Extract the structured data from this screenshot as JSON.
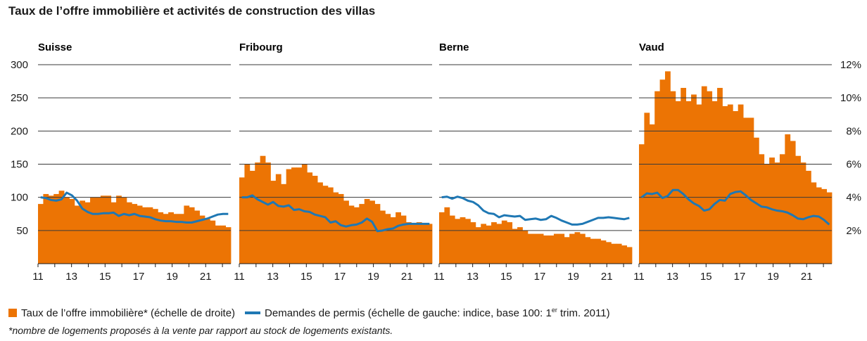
{
  "title": "Taux de l’offre immobilière et activités de construction des villas",
  "legend": {
    "bar_label": "Taux de l’offre immobilière* (échelle de droite)",
    "line_label_pre": "Demandes de permis (échelle de gauche: indice, base 100: 1",
    "line_label_sup": "er",
    "line_label_post": " trim. 2011)"
  },
  "footnote": "*nombre de logements proposés à la vente par rapport au stock de logements existants.",
  "colors": {
    "bar": "#ec7404",
    "line": "#1f78b4",
    "grid": "#3a3a3a"
  },
  "chart_data": [
    {
      "type": "bar+line",
      "title": "Suisse",
      "x_start": 2011.0,
      "x_step": 0.25,
      "x_ticks": [
        "11",
        "13",
        "15",
        "17",
        "19",
        "21"
      ],
      "y_left": {
        "range": [
          0,
          300
        ],
        "ticks": [
          50,
          100,
          150,
          200,
          250,
          300
        ],
        "tick_labels": [
          "50",
          "100",
          "150",
          "200",
          "250",
          "300"
        ]
      },
      "y_right": {
        "range": [
          0,
          12
        ],
        "ticks": [
          2,
          4,
          6,
          8,
          10,
          12
        ],
        "tick_labels": [
          "2%",
          "4%",
          "6%",
          "8%",
          "10%",
          "12%"
        ]
      },
      "bar_values": [
        3.6,
        4.2,
        4.1,
        4.2,
        4.4,
        4.0,
        3.9,
        3.5,
        3.8,
        3.7,
        4.0,
        4.0,
        4.1,
        4.1,
        3.7,
        4.1,
        4.0,
        3.7,
        3.6,
        3.5,
        3.4,
        3.4,
        3.3,
        3.1,
        3.0,
        3.1,
        3.0,
        3.0,
        3.5,
        3.4,
        3.2,
        2.9,
        2.7,
        2.6,
        2.3,
        2.3,
        2.2
      ],
      "line_values": [
        100,
        99,
        96,
        95,
        97,
        107,
        103,
        95,
        83,
        78,
        75,
        75,
        76,
        76,
        77,
        72,
        75,
        73,
        75,
        72,
        71,
        70,
        67,
        65,
        64,
        64,
        63,
        63,
        62,
        62,
        64,
        66,
        68,
        71,
        74,
        75,
        75
      ]
    },
    {
      "type": "bar+line",
      "title": "Fribourg",
      "x_start": 2011.0,
      "x_step": 0.25,
      "x_ticks": [
        "11",
        "13",
        "15",
        "17",
        "19",
        "21"
      ],
      "y_left": {
        "range": [
          0,
          300
        ],
        "ticks": [
          50,
          100,
          150,
          200,
          250,
          300
        ]
      },
      "y_right": {
        "range": [
          0,
          12
        ],
        "ticks": [
          2,
          4,
          6,
          8,
          10,
          12
        ]
      },
      "bar_values": [
        5.2,
        6.0,
        5.6,
        6.1,
        6.5,
        6.1,
        5.0,
        5.4,
        4.8,
        5.7,
        5.8,
        5.8,
        6.0,
        5.5,
        5.3,
        4.9,
        4.7,
        4.6,
        4.3,
        4.2,
        3.8,
        3.5,
        3.4,
        3.6,
        3.9,
        3.8,
        3.6,
        3.2,
        3.0,
        2.8,
        3.1,
        2.9,
        2.5,
        2.4,
        2.5,
        2.4,
        2.4
      ],
      "line_values": [
        100,
        100,
        103,
        97,
        93,
        89,
        93,
        87,
        86,
        88,
        81,
        82,
        79,
        78,
        74,
        72,
        70,
        62,
        64,
        58,
        56,
        58,
        59,
        62,
        68,
        63,
        49,
        50,
        52,
        53,
        57,
        59,
        60,
        60,
        60,
        60,
        60
      ]
    },
    {
      "type": "bar+line",
      "title": "Berne",
      "x_start": 2011.0,
      "x_step": 0.25,
      "x_ticks": [
        "11",
        "13",
        "15",
        "17",
        "19",
        "21"
      ],
      "y_left": {
        "range": [
          0,
          300
        ],
        "ticks": [
          50,
          100,
          150,
          200,
          250,
          300
        ]
      },
      "y_right": {
        "range": [
          0,
          12
        ],
        "ticks": [
          2,
          4,
          6,
          8,
          10,
          12
        ]
      },
      "bar_values": [
        3.1,
        3.4,
        2.9,
        2.7,
        2.8,
        2.7,
        2.5,
        2.2,
        2.4,
        2.3,
        2.5,
        2.4,
        2.6,
        2.5,
        2.1,
        2.2,
        2.0,
        1.8,
        1.8,
        1.8,
        1.7,
        1.7,
        1.8,
        1.8,
        1.6,
        1.8,
        1.9,
        1.8,
        1.6,
        1.5,
        1.5,
        1.4,
        1.3,
        1.2,
        1.2,
        1.1,
        1.0
      ],
      "line_values": [
        100,
        101,
        98,
        101,
        99,
        95,
        93,
        88,
        80,
        76,
        75,
        70,
        73,
        72,
        71,
        72,
        66,
        67,
        68,
        66,
        67,
        72,
        69,
        65,
        62,
        59,
        59,
        60,
        63,
        66,
        69,
        69,
        70,
        69,
        68,
        67,
        69
      ]
    },
    {
      "type": "bar+line",
      "title": "Vaud",
      "x_start": 2011.0,
      "x_step": 0.25,
      "x_ticks": [
        "11",
        "13",
        "15",
        "17",
        "19",
        "21"
      ],
      "y_left": {
        "range": [
          0,
          300
        ],
        "ticks": [
          50,
          100,
          150,
          200,
          250,
          300
        ]
      },
      "y_right": {
        "range": [
          0,
          12
        ],
        "ticks": [
          2,
          4,
          6,
          8,
          10,
          12
        ]
      },
      "bar_values": [
        7.2,
        9.1,
        8.4,
        10.4,
        11.1,
        11.6,
        10.4,
        9.8,
        10.6,
        9.8,
        10.2,
        9.6,
        10.7,
        10.4,
        9.8,
        10.6,
        9.5,
        9.6,
        9.2,
        9.6,
        8.8,
        8.8,
        7.6,
        6.6,
        6.0,
        6.4,
        6.1,
        6.6,
        7.8,
        7.4,
        6.5,
        6.1,
        5.6,
        4.9,
        4.6,
        4.5,
        4.3
      ],
      "line_values": [
        100,
        106,
        105,
        107,
        99,
        102,
        111,
        111,
        105,
        97,
        91,
        87,
        80,
        82,
        90,
        96,
        95,
        105,
        108,
        109,
        103,
        96,
        91,
        86,
        85,
        82,
        80,
        79,
        77,
        73,
        68,
        67,
        70,
        72,
        71,
        66,
        59
      ]
    }
  ]
}
